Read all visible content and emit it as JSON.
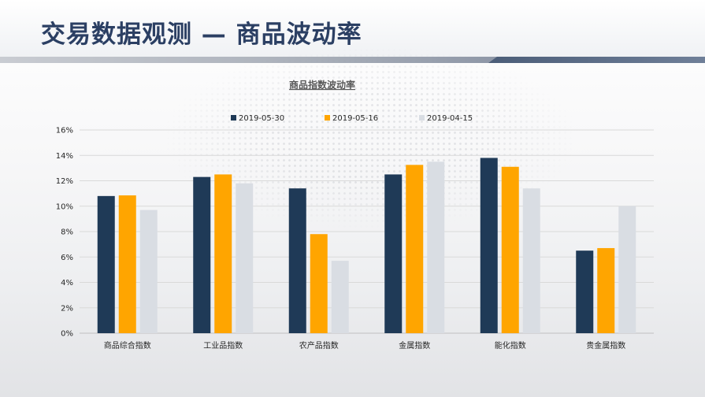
{
  "page": {
    "title": "交易数据观测 — 商品波动率"
  },
  "colors": {
    "title": "#2b3f63",
    "series": [
      "#1f3a57",
      "#ffa500",
      "#d9dde3"
    ]
  },
  "chart_data": {
    "type": "bar",
    "title": "商品指数波动率",
    "xlabel": "",
    "ylabel": "",
    "categories": [
      "商品综合指数",
      "工业品指数",
      "农产品指数",
      "金属指数",
      "能化指数",
      "贵金属指数"
    ],
    "series": [
      {
        "name": "2019-05-30",
        "values": [
          10.8,
          12.3,
          11.4,
          12.5,
          13.8,
          6.5
        ]
      },
      {
        "name": "2019-05-16",
        "values": [
          10.85,
          12.5,
          7.8,
          13.25,
          13.1,
          6.7
        ]
      },
      {
        "name": "2019-04-15",
        "values": [
          9.7,
          11.8,
          5.7,
          13.5,
          11.4,
          10.0
        ]
      }
    ],
    "ylim": [
      0,
      16
    ],
    "yticks": [
      "0%",
      "2%",
      "4%",
      "6%",
      "8%",
      "10%",
      "12%",
      "14%",
      "16%"
    ],
    "grid": true,
    "legend_position": "top"
  }
}
